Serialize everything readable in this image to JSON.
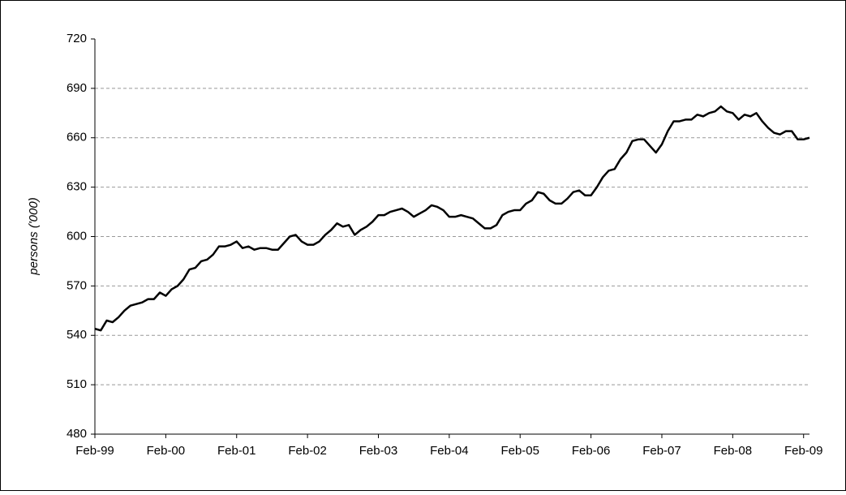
{
  "chart_data": {
    "type": "line",
    "y_label": "persons ('000)",
    "categories": [
      "Feb-99",
      null,
      null,
      null,
      null,
      null,
      null,
      null,
      null,
      null,
      null,
      null,
      "Feb-00",
      null,
      null,
      null,
      null,
      null,
      null,
      null,
      null,
      null,
      null,
      null,
      "Feb-01",
      null,
      null,
      null,
      null,
      null,
      null,
      null,
      null,
      null,
      null,
      null,
      "Feb-02",
      null,
      null,
      null,
      null,
      null,
      null,
      null,
      null,
      null,
      null,
      null,
      "Feb-03",
      null,
      null,
      null,
      null,
      null,
      null,
      null,
      null,
      null,
      null,
      null,
      "Feb-04",
      null,
      null,
      null,
      null,
      null,
      null,
      null,
      null,
      null,
      null,
      null,
      "Feb-05",
      null,
      null,
      null,
      null,
      null,
      null,
      null,
      null,
      null,
      null,
      null,
      "Feb-06",
      null,
      null,
      null,
      null,
      null,
      null,
      null,
      null,
      null,
      null,
      null,
      "Feb-07",
      null,
      null,
      null,
      null,
      null,
      null,
      null,
      null,
      null,
      null,
      null,
      "Feb-08",
      null,
      null,
      null,
      null,
      null,
      null,
      null,
      null,
      null,
      null,
      null,
      "Feb-09",
      null
    ],
    "values": [
      544,
      543,
      549,
      548,
      551,
      555,
      558,
      559,
      560,
      562,
      562,
      566,
      564,
      568,
      570,
      574,
      580,
      581,
      585,
      586,
      589,
      594,
      594,
      595,
      597,
      593,
      594,
      592,
      593,
      593,
      592,
      592,
      596,
      600,
      601,
      597,
      595,
      595,
      597,
      601,
      604,
      608,
      606,
      607,
      601,
      604,
      606,
      609,
      613,
      613,
      615,
      616,
      617,
      615,
      612,
      614,
      616,
      619,
      618,
      616,
      612,
      612,
      613,
      612,
      611,
      608,
      605,
      605,
      607,
      613,
      615,
      616,
      616,
      620,
      622,
      627,
      626,
      622,
      620,
      620,
      623,
      627,
      628,
      625,
      625,
      630,
      636,
      640,
      641,
      647,
      651,
      658,
      659,
      659,
      655,
      651,
      656,
      664,
      670,
      670,
      671,
      671,
      674,
      673,
      675,
      676,
      679,
      676,
      675,
      671,
      674,
      673,
      675,
      670,
      666,
      663,
      662,
      664,
      664,
      659,
      659,
      660
    ],
    "color": "#000000",
    "ylim": [
      480,
      720
    ],
    "yticks": [
      480,
      510,
      540,
      570,
      600,
      630,
      660,
      690,
      720
    ],
    "grid": true
  }
}
